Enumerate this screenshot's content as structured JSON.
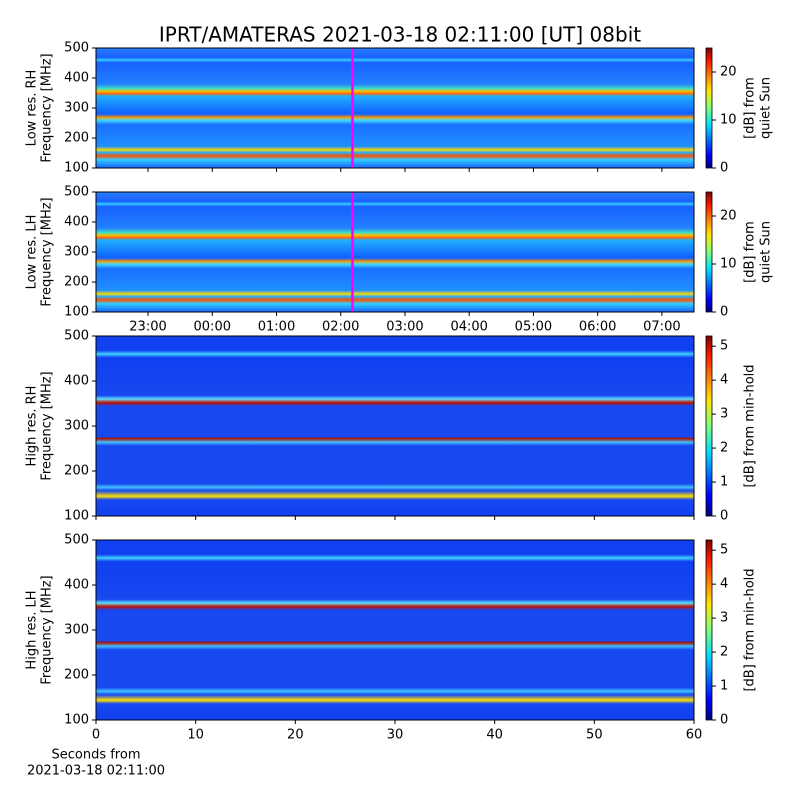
{
  "chart_data": {
    "type": "spectrogram",
    "title": "IPRT/AMATERAS 2021-03-18 02:11:00 [UT]   08bit",
    "xlabel": [
      "Seconds from",
      "2021-03-18 02:11:00"
    ],
    "panels": [
      {
        "ylabel": [
          "Low res. RH",
          "Frequency [MHz]"
        ],
        "ylim": [
          100,
          500
        ],
        "yticks": [
          100,
          200,
          300,
          400,
          500
        ],
        "cursor": 2.183,
        "cursor_color": "#ff00ff",
        "colorbar": {
          "label": [
            "[dB] from",
            "quiet Sun"
          ],
          "lim": [
            0,
            25
          ],
          "ticks": [
            0,
            10,
            20
          ]
        }
      },
      {
        "ylabel": [
          "Low res. LH",
          "Frequency [MHz]"
        ],
        "ylim": [
          100,
          500
        ],
        "yticks": [
          100,
          200,
          300,
          400,
          500
        ],
        "cursor": 2.183,
        "cursor_color": "#ff00ff",
        "xlim": [
          -1.81,
          7.5
        ],
        "xticks": [
          {
            "value": -1,
            "label": "23:00"
          },
          {
            "value": 0,
            "label": "00:00"
          },
          {
            "value": 1,
            "label": "01:00"
          },
          {
            "value": 2,
            "label": "02:00"
          },
          {
            "value": 3,
            "label": "03:00"
          },
          {
            "value": 4,
            "label": "04:00"
          },
          {
            "value": 5,
            "label": "05:00"
          },
          {
            "value": 6,
            "label": "06:00"
          },
          {
            "value": 7,
            "label": "07:00"
          }
        ],
        "colorbar": {
          "label": [
            "[dB] from",
            "quiet Sun"
          ],
          "lim": [
            0,
            25
          ],
          "ticks": [
            0,
            10,
            20
          ]
        }
      },
      {
        "ylabel": [
          "High res. RH",
          "Frequency [MHz]"
        ],
        "ylim": [
          100,
          500
        ],
        "yticks": [
          100,
          200,
          300,
          400,
          500
        ],
        "colorbar": {
          "label": [
            "[dB] from min-hold"
          ],
          "lim": [
            0,
            5.3
          ],
          "ticks": [
            0,
            1,
            2,
            3,
            4,
            5
          ]
        }
      },
      {
        "ylabel": [
          "High res. LH",
          "Frequency [MHz]"
        ],
        "ylim": [
          100,
          500
        ],
        "yticks": [
          100,
          200,
          300,
          400,
          500
        ],
        "xlim": [
          0,
          60
        ],
        "xticks": [
          0,
          10,
          20,
          30,
          40,
          50,
          60
        ],
        "colorbar": {
          "label": [
            "[dB] from min-hold"
          ],
          "lim": [
            0,
            5.3
          ],
          "ticks": [
            0,
            1,
            2,
            3,
            4,
            5
          ]
        }
      }
    ]
  }
}
